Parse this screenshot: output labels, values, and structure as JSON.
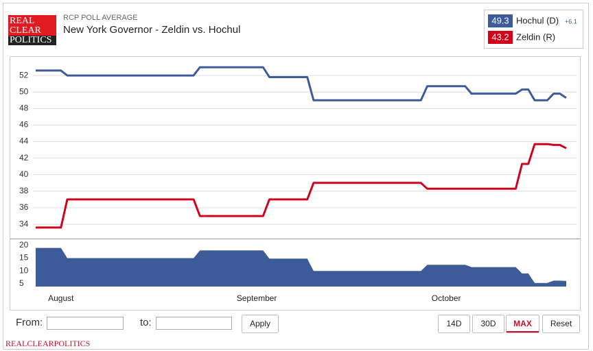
{
  "header": {
    "logo": [
      "REAL",
      "CLEAR",
      "POLITICS"
    ],
    "kicker": "RCP POLL AVERAGE",
    "title": "New York Governor - Zeldin vs. Hochul",
    "spread_label": "+6.1"
  },
  "chart_data": [
    {
      "type": "line",
      "ylim": [
        32.3,
        54
      ],
      "yticks": [
        34,
        36,
        38,
        40,
        42,
        44,
        46,
        48,
        50,
        52
      ],
      "grid": true,
      "series": [
        {
          "name": "Hochul (D)",
          "color": "#3d5a99",
          "values": [
            52.6,
            52.6,
            52.6,
            52.6,
            52.6,
            52.0,
            52.0,
            52.0,
            52.0,
            52.0,
            52.0,
            52.0,
            52.0,
            52.0,
            52.0,
            52.0,
            52.0,
            52.0,
            52.0,
            52.0,
            52.0,
            52.0,
            52.0,
            52.0,
            52.0,
            52.0,
            53.0,
            53.0,
            53.0,
            53.0,
            53.0,
            53.0,
            53.0,
            53.0,
            53.0,
            53.0,
            53.0,
            51.8,
            51.8,
            51.8,
            51.8,
            51.8,
            51.8,
            51.8,
            49.0,
            49.0,
            49.0,
            49.0,
            49.0,
            49.0,
            49.0,
            49.0,
            49.0,
            49.0,
            49.0,
            49.0,
            49.0,
            49.0,
            49.0,
            49.0,
            49.0,
            49.0,
            50.7,
            50.7,
            50.7,
            50.7,
            50.7,
            50.7,
            50.7,
            49.8,
            49.8,
            49.8,
            49.8,
            49.8,
            49.8,
            49.8,
            49.8,
            50.3,
            50.3,
            49.0,
            49.0,
            49.0,
            49.8,
            49.8,
            49.3
          ]
        },
        {
          "name": "Zeldin (R)",
          "color": "#d0021b",
          "values": [
            33.6,
            33.6,
            33.6,
            33.6,
            33.6,
            37.0,
            37.0,
            37.0,
            37.0,
            37.0,
            37.0,
            37.0,
            37.0,
            37.0,
            37.0,
            37.0,
            37.0,
            37.0,
            37.0,
            37.0,
            37.0,
            37.0,
            37.0,
            37.0,
            37.0,
            37.0,
            35.0,
            35.0,
            35.0,
            35.0,
            35.0,
            35.0,
            35.0,
            35.0,
            35.0,
            35.0,
            35.0,
            37.0,
            37.0,
            37.0,
            37.0,
            37.0,
            37.0,
            37.0,
            39.0,
            39.0,
            39.0,
            39.0,
            39.0,
            39.0,
            39.0,
            39.0,
            39.0,
            39.0,
            39.0,
            39.0,
            39.0,
            39.0,
            39.0,
            39.0,
            39.0,
            39.0,
            38.3,
            38.3,
            38.3,
            38.3,
            38.3,
            38.3,
            38.3,
            38.3,
            38.3,
            38.3,
            38.3,
            38.3,
            38.3,
            38.3,
            38.3,
            41.3,
            41.3,
            43.7,
            43.7,
            43.7,
            43.6,
            43.6,
            43.2
          ]
        }
      ]
    },
    {
      "type": "area",
      "ylim": [
        3.9,
        22.1
      ],
      "yticks": [
        5,
        10,
        15,
        20
      ],
      "color": "#3d5a99",
      "categories": [
        null,
        null,
        null,
        null,
        "August",
        null,
        null,
        null,
        null,
        null,
        null,
        null,
        null,
        null,
        null,
        null,
        null,
        null,
        null,
        null,
        null,
        null,
        null,
        null,
        null,
        null,
        null,
        null,
        null,
        null,
        null,
        null,
        null,
        null,
        null,
        "September",
        null,
        null,
        null,
        null,
        null,
        null,
        null,
        null,
        null,
        null,
        null,
        null,
        null,
        null,
        null,
        null,
        null,
        null,
        null,
        null,
        null,
        null,
        null,
        null,
        null,
        null,
        null,
        null,
        null,
        "October",
        null,
        null,
        null,
        null,
        null,
        null,
        null,
        null,
        null,
        null,
        null,
        null,
        null,
        null,
        null,
        null,
        null,
        null,
        null
      ],
      "values": [
        19,
        19,
        19,
        19,
        19,
        15,
        15,
        15,
        15,
        15,
        15,
        15,
        15,
        15,
        15,
        15,
        15,
        15,
        15,
        15,
        15,
        15,
        15,
        15,
        15,
        15,
        18,
        18,
        18,
        18,
        18,
        18,
        18,
        18,
        18,
        18,
        18,
        14.8,
        14.8,
        14.8,
        14.8,
        14.8,
        14.8,
        14.8,
        10,
        10,
        10,
        10,
        10,
        10,
        10,
        10,
        10,
        10,
        10,
        10,
        10,
        10,
        10,
        10,
        10,
        10,
        12.4,
        12.4,
        12.4,
        12.4,
        12.4,
        12.4,
        12.4,
        11.5,
        11.5,
        11.5,
        11.5,
        11.5,
        11.5,
        11.5,
        11.5,
        9,
        9,
        5.3,
        5.3,
        5.3,
        6.2,
        6.2,
        6.1
      ]
    }
  ],
  "controls": {
    "from": "From:",
    "to": "to:",
    "apply": "Apply",
    "ranges": [
      "14D",
      "30D",
      "MAX",
      "Reset"
    ]
  },
  "footer": "REALCLEARPOLITICS"
}
